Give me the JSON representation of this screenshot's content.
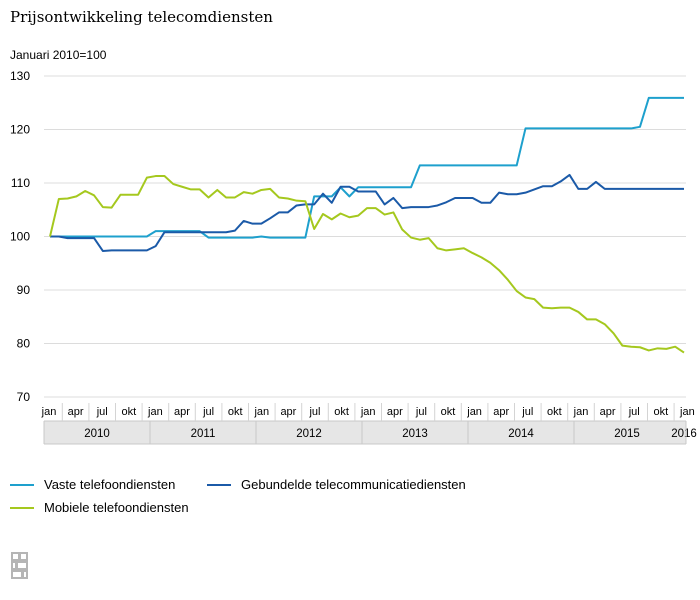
{
  "chart_data": {
    "type": "line",
    "title": "Prijsontwikkeling telecomdiensten",
    "subtitle": "Januari 2010=100",
    "ylim": [
      70,
      130
    ],
    "yticks": [
      70,
      80,
      90,
      100,
      110,
      120,
      130
    ],
    "month_labels": [
      "jan",
      "apr",
      "jul",
      "okt",
      "jan",
      "apr",
      "jul",
      "okt",
      "jan",
      "apr",
      "jul",
      "okt",
      "jan",
      "apr",
      "jul",
      "okt",
      "jan",
      "apr",
      "jul",
      "okt",
      "jan",
      "apr",
      "jul",
      "okt",
      "jan"
    ],
    "years": [
      "2010",
      "2011",
      "2012",
      "2013",
      "2014",
      "2015",
      "2016"
    ],
    "x_start": "2010-01",
    "x_end": "2016-01",
    "series": [
      {
        "name": "Vaste telefoondiensten",
        "color": "#1ea0cd",
        "values": [
          100,
          100,
          100,
          100,
          100,
          100,
          100,
          100,
          100,
          100,
          100,
          100,
          101,
          101,
          101,
          101,
          101,
          101,
          99.8,
          99.8,
          99.8,
          99.8,
          99.8,
          99.8,
          100,
          99.8,
          99.8,
          99.8,
          99.8,
          99.8,
          107.5,
          107.5,
          107.5,
          109.2,
          107.5,
          109.2,
          109.2,
          109.2,
          109.2,
          109.2,
          109.2,
          109.2,
          113.3,
          113.3,
          113.3,
          113.3,
          113.3,
          113.3,
          113.3,
          113.3,
          113.3,
          113.3,
          113.3,
          113.3,
          120.2,
          120.2,
          120.2,
          120.2,
          120.2,
          120.2,
          120.2,
          120.2,
          120.2,
          120.2,
          120.2,
          120.2,
          120.2,
          120.5,
          125.9,
          125.9,
          125.9,
          125.9,
          125.9
        ]
      },
      {
        "name": "Gebundelde telecommunicatiediensten",
        "color": "#1b5aa8",
        "values": [
          100,
          100,
          99.7,
          99.7,
          99.7,
          99.7,
          97.3,
          97.4,
          97.4,
          97.4,
          97.4,
          97.4,
          98.2,
          100.8,
          100.8,
          100.8,
          100.8,
          100.8,
          100.8,
          100.8,
          100.8,
          101.1,
          102.9,
          102.4,
          102.4,
          103.4,
          104.5,
          104.5,
          105.8,
          106,
          106,
          108,
          106.3,
          109.3,
          109.3,
          108.4,
          108.4,
          108.4,
          106,
          107.2,
          105.3,
          105.5,
          105.5,
          105.5,
          105.8,
          106.4,
          107.2,
          107.2,
          107.2,
          106.3,
          106.3,
          108.2,
          107.9,
          107.9,
          108.2,
          108.8,
          109.4,
          109.4,
          110.3,
          111.5,
          108.9,
          108.9,
          110.2,
          108.9,
          108.9,
          108.9,
          108.9,
          108.9,
          108.9,
          108.9,
          108.9,
          108.9,
          108.9
        ]
      },
      {
        "name": "Mobiele telefoondiensten",
        "color": "#a5c81e",
        "values": [
          100,
          107,
          107.1,
          107.5,
          108.5,
          107.7,
          105.5,
          105.4,
          107.8,
          107.8,
          107.8,
          111,
          111.3,
          111.3,
          109.8,
          109.3,
          108.8,
          108.8,
          107.3,
          108.7,
          107.3,
          107.3,
          108.3,
          108,
          108.7,
          108.9,
          107.3,
          107.1,
          106.7,
          106.6,
          101.4,
          104.2,
          103.2,
          104.3,
          103.6,
          103.9,
          105.3,
          105.3,
          104.1,
          104.5,
          101.3,
          99.8,
          99.4,
          99.7,
          97.8,
          97.4,
          97.6,
          97.8,
          96.9,
          96.1,
          95.1,
          93.7,
          91.9,
          89.8,
          88.6,
          88.3,
          86.7,
          86.6,
          86.7,
          86.7,
          85.9,
          84.5,
          84.5,
          83.6,
          81.9,
          79.6,
          79.4,
          79.3,
          78.7,
          79.1,
          79,
          79.4,
          78.3
        ]
      }
    ]
  },
  "legend": {
    "vast": "Vaste telefoondiensten",
    "gebundeld": "Gebundelde telecommunicatiediensten",
    "mobiel": "Mobiele telefoondiensten"
  },
  "logo_text": "cbs"
}
